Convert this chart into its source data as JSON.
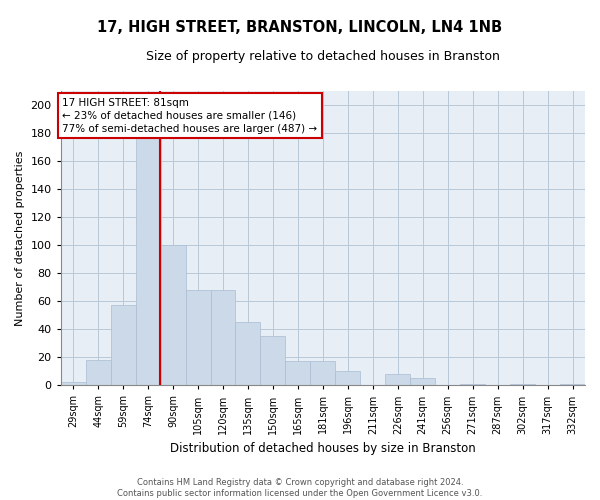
{
  "title": "17, HIGH STREET, BRANSTON, LINCOLN, LN4 1NB",
  "subtitle": "Size of property relative to detached houses in Branston",
  "xlabel": "Distribution of detached houses by size in Branston",
  "ylabel": "Number of detached properties",
  "footer_line1": "Contains HM Land Registry data © Crown copyright and database right 2024.",
  "footer_line2": "Contains public sector information licensed under the Open Government Licence v3.0.",
  "bar_color": "#ccd9e8",
  "bar_edge_color": "#aabdd4",
  "grid_color": "#b8c8d8",
  "background_color": "#e8eef5",
  "annotation_box_color": "#cc0000",
  "annotation_text_line1": "17 HIGH STREET: 81sqm",
  "annotation_text_line2": "← 23% of detached houses are smaller (146)",
  "annotation_text_line3": "77% of semi-detached houses are larger (487) →",
  "property_line_color": "#cc0000",
  "categories": [
    "29sqm",
    "44sqm",
    "59sqm",
    "74sqm",
    "90sqm",
    "105sqm",
    "120sqm",
    "135sqm",
    "150sqm",
    "165sqm",
    "181sqm",
    "196sqm",
    "211sqm",
    "226sqm",
    "241sqm",
    "256sqm",
    "271sqm",
    "287sqm",
    "302sqm",
    "317sqm",
    "332sqm"
  ],
  "bin_left_edges": [
    22,
    37,
    52,
    67,
    82,
    97,
    112,
    127,
    142,
    157,
    172,
    187,
    202,
    217,
    232,
    247,
    262,
    277,
    292,
    307,
    322
  ],
  "bin_width": 15,
  "values": [
    2,
    18,
    57,
    190,
    100,
    68,
    68,
    45,
    35,
    17,
    17,
    10,
    0,
    8,
    5,
    0,
    1,
    0,
    1,
    0,
    1
  ],
  "property_line_x": 81.5,
  "ylim": [
    0,
    210
  ],
  "yticks": [
    0,
    20,
    40,
    60,
    80,
    100,
    120,
    140,
    160,
    180,
    200
  ],
  "xlim_left": 22,
  "xlim_right": 337
}
